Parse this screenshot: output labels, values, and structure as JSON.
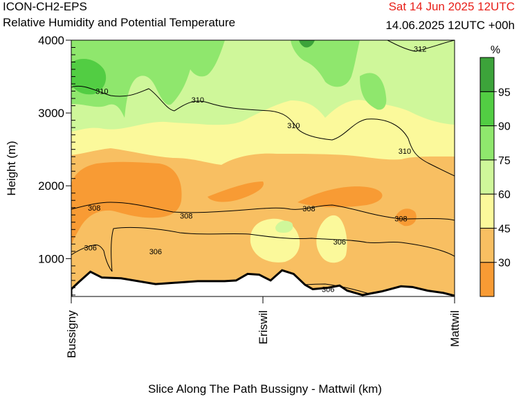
{
  "header": {
    "model": "ICON-CH2-EPS",
    "product": "Relative Humidity and Potential Temperature",
    "valid_time": "Sat 14 Jun 2025 12UTC",
    "run_info": "14.06.2025 12UTC +00h",
    "valid_time_color": "#e8201a"
  },
  "chart_data": {
    "type": "heatmap",
    "title": "Relative Humidity and Potential Temperature",
    "xlabel": "Slice Along The Path Bussigny - Mattwil (km)",
    "ylabel": "Height (m)",
    "x_ticks": [
      "Bussigny",
      "Eriswil",
      "Mattwil"
    ],
    "ylim": [
      480,
      4000
    ],
    "y_ticks": [
      1000,
      2000,
      3000,
      4000
    ],
    "y_ticks_labels": [
      "1000",
      "2000",
      "3000",
      "4000"
    ],
    "colorbar": {
      "unit": "%",
      "levels": [
        30,
        45,
        60,
        75,
        90,
        95
      ],
      "level_labels": [
        "30",
        "45",
        "60",
        "75",
        "90",
        "95"
      ],
      "colors": [
        "#f89b34",
        "#f8bf62",
        "#fbf99b",
        "#cff79a",
        "#8fe76d",
        "#52cd43",
        "#3ca33a"
      ]
    },
    "isentropes_K": [
      306,
      308,
      310,
      312
    ],
    "contour_labels": [
      {
        "text": "306",
        "x": 0.05,
        "y": 1150
      },
      {
        "text": "306",
        "x": 0.22,
        "y": 1100
      },
      {
        "text": "306",
        "x": 0.7,
        "y": 1230
      },
      {
        "text": "306",
        "x": 0.67,
        "y": 580
      },
      {
        "text": "308",
        "x": 0.06,
        "y": 1700
      },
      {
        "text": "308",
        "x": 0.3,
        "y": 1590
      },
      {
        "text": "308",
        "x": 0.62,
        "y": 1690
      },
      {
        "text": "308",
        "x": 0.86,
        "y": 1550
      },
      {
        "text": "310",
        "x": 0.08,
        "y": 3300
      },
      {
        "text": "310",
        "x": 0.33,
        "y": 3180
      },
      {
        "text": "310",
        "x": 0.58,
        "y": 2830
      },
      {
        "text": "310",
        "x": 0.87,
        "y": 2480
      },
      {
        "text": "312",
        "x": 0.91,
        "y": 3880
      }
    ],
    "terrain_height_m": [
      {
        "x": 0.0,
        "y": 580
      },
      {
        "x": 0.02,
        "y": 680
      },
      {
        "x": 0.05,
        "y": 820
      },
      {
        "x": 0.08,
        "y": 740
      },
      {
        "x": 0.13,
        "y": 730
      },
      {
        "x": 0.22,
        "y": 650
      },
      {
        "x": 0.33,
        "y": 690
      },
      {
        "x": 0.4,
        "y": 690
      },
      {
        "x": 0.43,
        "y": 700
      },
      {
        "x": 0.46,
        "y": 790
      },
      {
        "x": 0.49,
        "y": 780
      },
      {
        "x": 0.52,
        "y": 700
      },
      {
        "x": 0.55,
        "y": 840
      },
      {
        "x": 0.58,
        "y": 790
      },
      {
        "x": 0.61,
        "y": 640
      },
      {
        "x": 0.63,
        "y": 580
      },
      {
        "x": 0.67,
        "y": 600
      },
      {
        "x": 0.7,
        "y": 630
      },
      {
        "x": 0.72,
        "y": 560
      },
      {
        "x": 0.76,
        "y": 500
      },
      {
        "x": 0.81,
        "y": 550
      },
      {
        "x": 0.86,
        "y": 620
      },
      {
        "x": 0.89,
        "y": 610
      },
      {
        "x": 0.93,
        "y": 560
      },
      {
        "x": 0.97,
        "y": 530
      },
      {
        "x": 1.0,
        "y": 490
      }
    ]
  }
}
